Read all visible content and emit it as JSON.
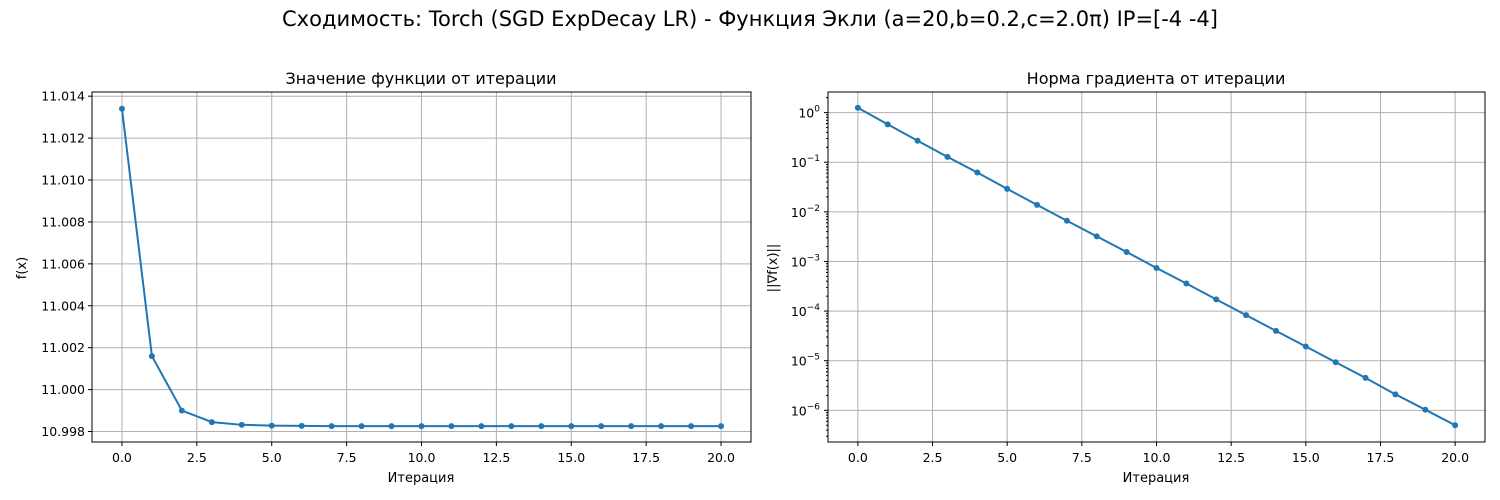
{
  "figure": {
    "suptitle": "Сходимость: Torch (SGD ExpDecay LR) - Функция Экли (a=20,b=0.2,c=2.0π) IP=[-4 -4]"
  },
  "chart_data": [
    {
      "type": "line",
      "title": "Значение функции от итерации",
      "xlabel": "Итерация",
      "ylabel": "f(x)",
      "xscale": "linear",
      "yscale": "linear",
      "xlim": [
        -1,
        21
      ],
      "ylim": [
        10.9975,
        11.0142
      ],
      "xticks": [
        0,
        2.5,
        5,
        7.5,
        10,
        12.5,
        15,
        17.5,
        20
      ],
      "xtick_labels": [
        "0.0",
        "2.5",
        "5.0",
        "7.5",
        "10.0",
        "12.5",
        "15.0",
        "17.5",
        "20.0"
      ],
      "yticks": [
        10.998,
        11.0,
        11.002,
        11.004,
        11.006,
        11.008,
        11.01,
        11.012,
        11.014
      ],
      "ytick_labels": [
        "10.998",
        "11.000",
        "11.002",
        "11.004",
        "11.006",
        "11.008",
        "11.010",
        "11.012",
        "11.014"
      ],
      "grid": true,
      "color": "#1f77b4",
      "x": [
        0,
        1,
        2,
        3,
        4,
        5,
        6,
        7,
        8,
        9,
        10,
        11,
        12,
        13,
        14,
        15,
        16,
        17,
        18,
        19,
        20
      ],
      "y": [
        11.0134,
        11.0016,
        10.999,
        10.99845,
        10.99832,
        10.99828,
        10.99827,
        10.99826,
        10.99826,
        10.99826,
        10.99826,
        10.99826,
        10.99826,
        10.99826,
        10.99826,
        10.99826,
        10.99826,
        10.99826,
        10.99826,
        10.99826,
        10.99826
      ]
    },
    {
      "type": "line",
      "title": "Норма градиента от итерации",
      "xlabel": "Итерация",
      "ylabel": "||∇f(x)||",
      "xscale": "linear",
      "yscale": "log",
      "xlim": [
        -1,
        21
      ],
      "ylim": [
        2.3e-07,
        2.6
      ],
      "xticks": [
        0,
        2.5,
        5,
        7.5,
        10,
        12.5,
        15,
        17.5,
        20
      ],
      "xtick_labels": [
        "0.0",
        "2.5",
        "5.0",
        "7.5",
        "10.0",
        "12.5",
        "15.0",
        "17.5",
        "20.0"
      ],
      "yticks": [
        1e-06,
        1e-05,
        0.0001,
        0.001,
        0.01,
        0.1,
        1
      ],
      "ytick_bases": [
        "10",
        "10",
        "10",
        "10",
        "10",
        "10",
        "10"
      ],
      "ytick_exps": [
        "−6",
        "−5",
        "−4",
        "−3",
        "−2",
        "−1",
        "0"
      ],
      "grid": true,
      "color": "#1f77b4",
      "x": [
        0,
        1,
        2,
        3,
        4,
        5,
        6,
        7,
        8,
        9,
        10,
        11,
        12,
        13,
        14,
        15,
        16,
        17,
        18,
        19,
        20
      ],
      "y": [
        1.25,
        0.58,
        0.27,
        0.128,
        0.062,
        0.029,
        0.0138,
        0.0066,
        0.0032,
        0.00155,
        0.00074,
        0.00036,
        0.000172,
        8.3e-05,
        4e-05,
        1.93e-05,
        9.3e-06,
        4.5e-06,
        2.1e-06,
        1.03e-06,
        5e-07
      ]
    }
  ]
}
